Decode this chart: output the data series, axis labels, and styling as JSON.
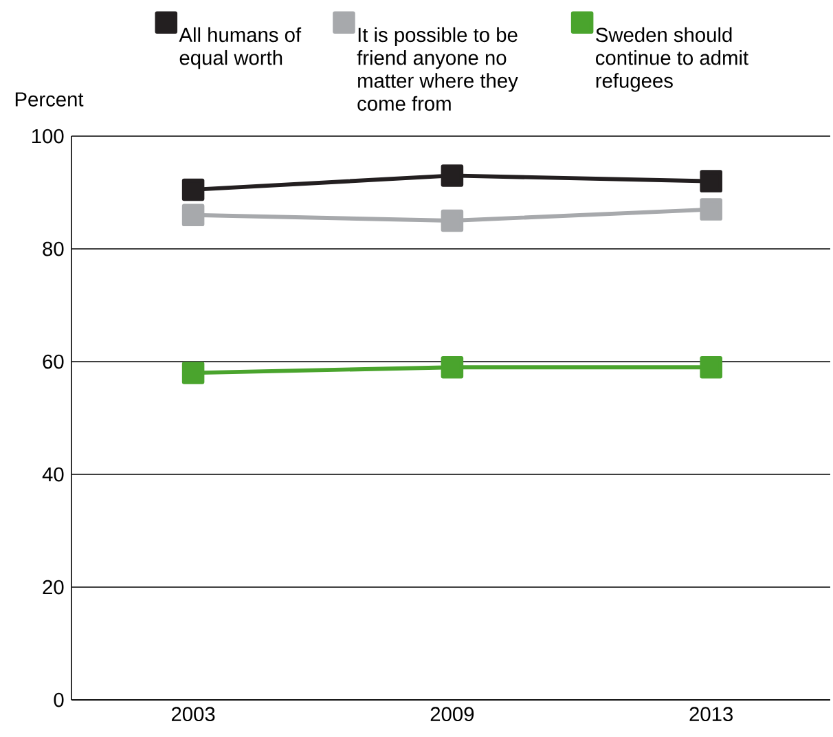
{
  "chart_data": {
    "type": "line",
    "ylabel": "Percent",
    "categories": [
      "2003",
      "2009",
      "2013"
    ],
    "series": [
      {
        "name": "All humans of equal worth",
        "color": "#231f20",
        "values": [
          90.5,
          93,
          92
        ]
      },
      {
        "name": "It is possible to be friend anyone no matter where they come from",
        "color": "#a7a9ac",
        "values": [
          86,
          85,
          87
        ]
      },
      {
        "name": "Sweden should continue to admit refugees",
        "color": "#4aa42d",
        "values": [
          58,
          59,
          59
        ]
      }
    ],
    "ylim": [
      0,
      100
    ],
    "yticks": [
      0,
      20,
      40,
      60,
      80,
      100
    ],
    "grid": "y",
    "legend": "top",
    "marker": "square",
    "line_style": "solid"
  }
}
